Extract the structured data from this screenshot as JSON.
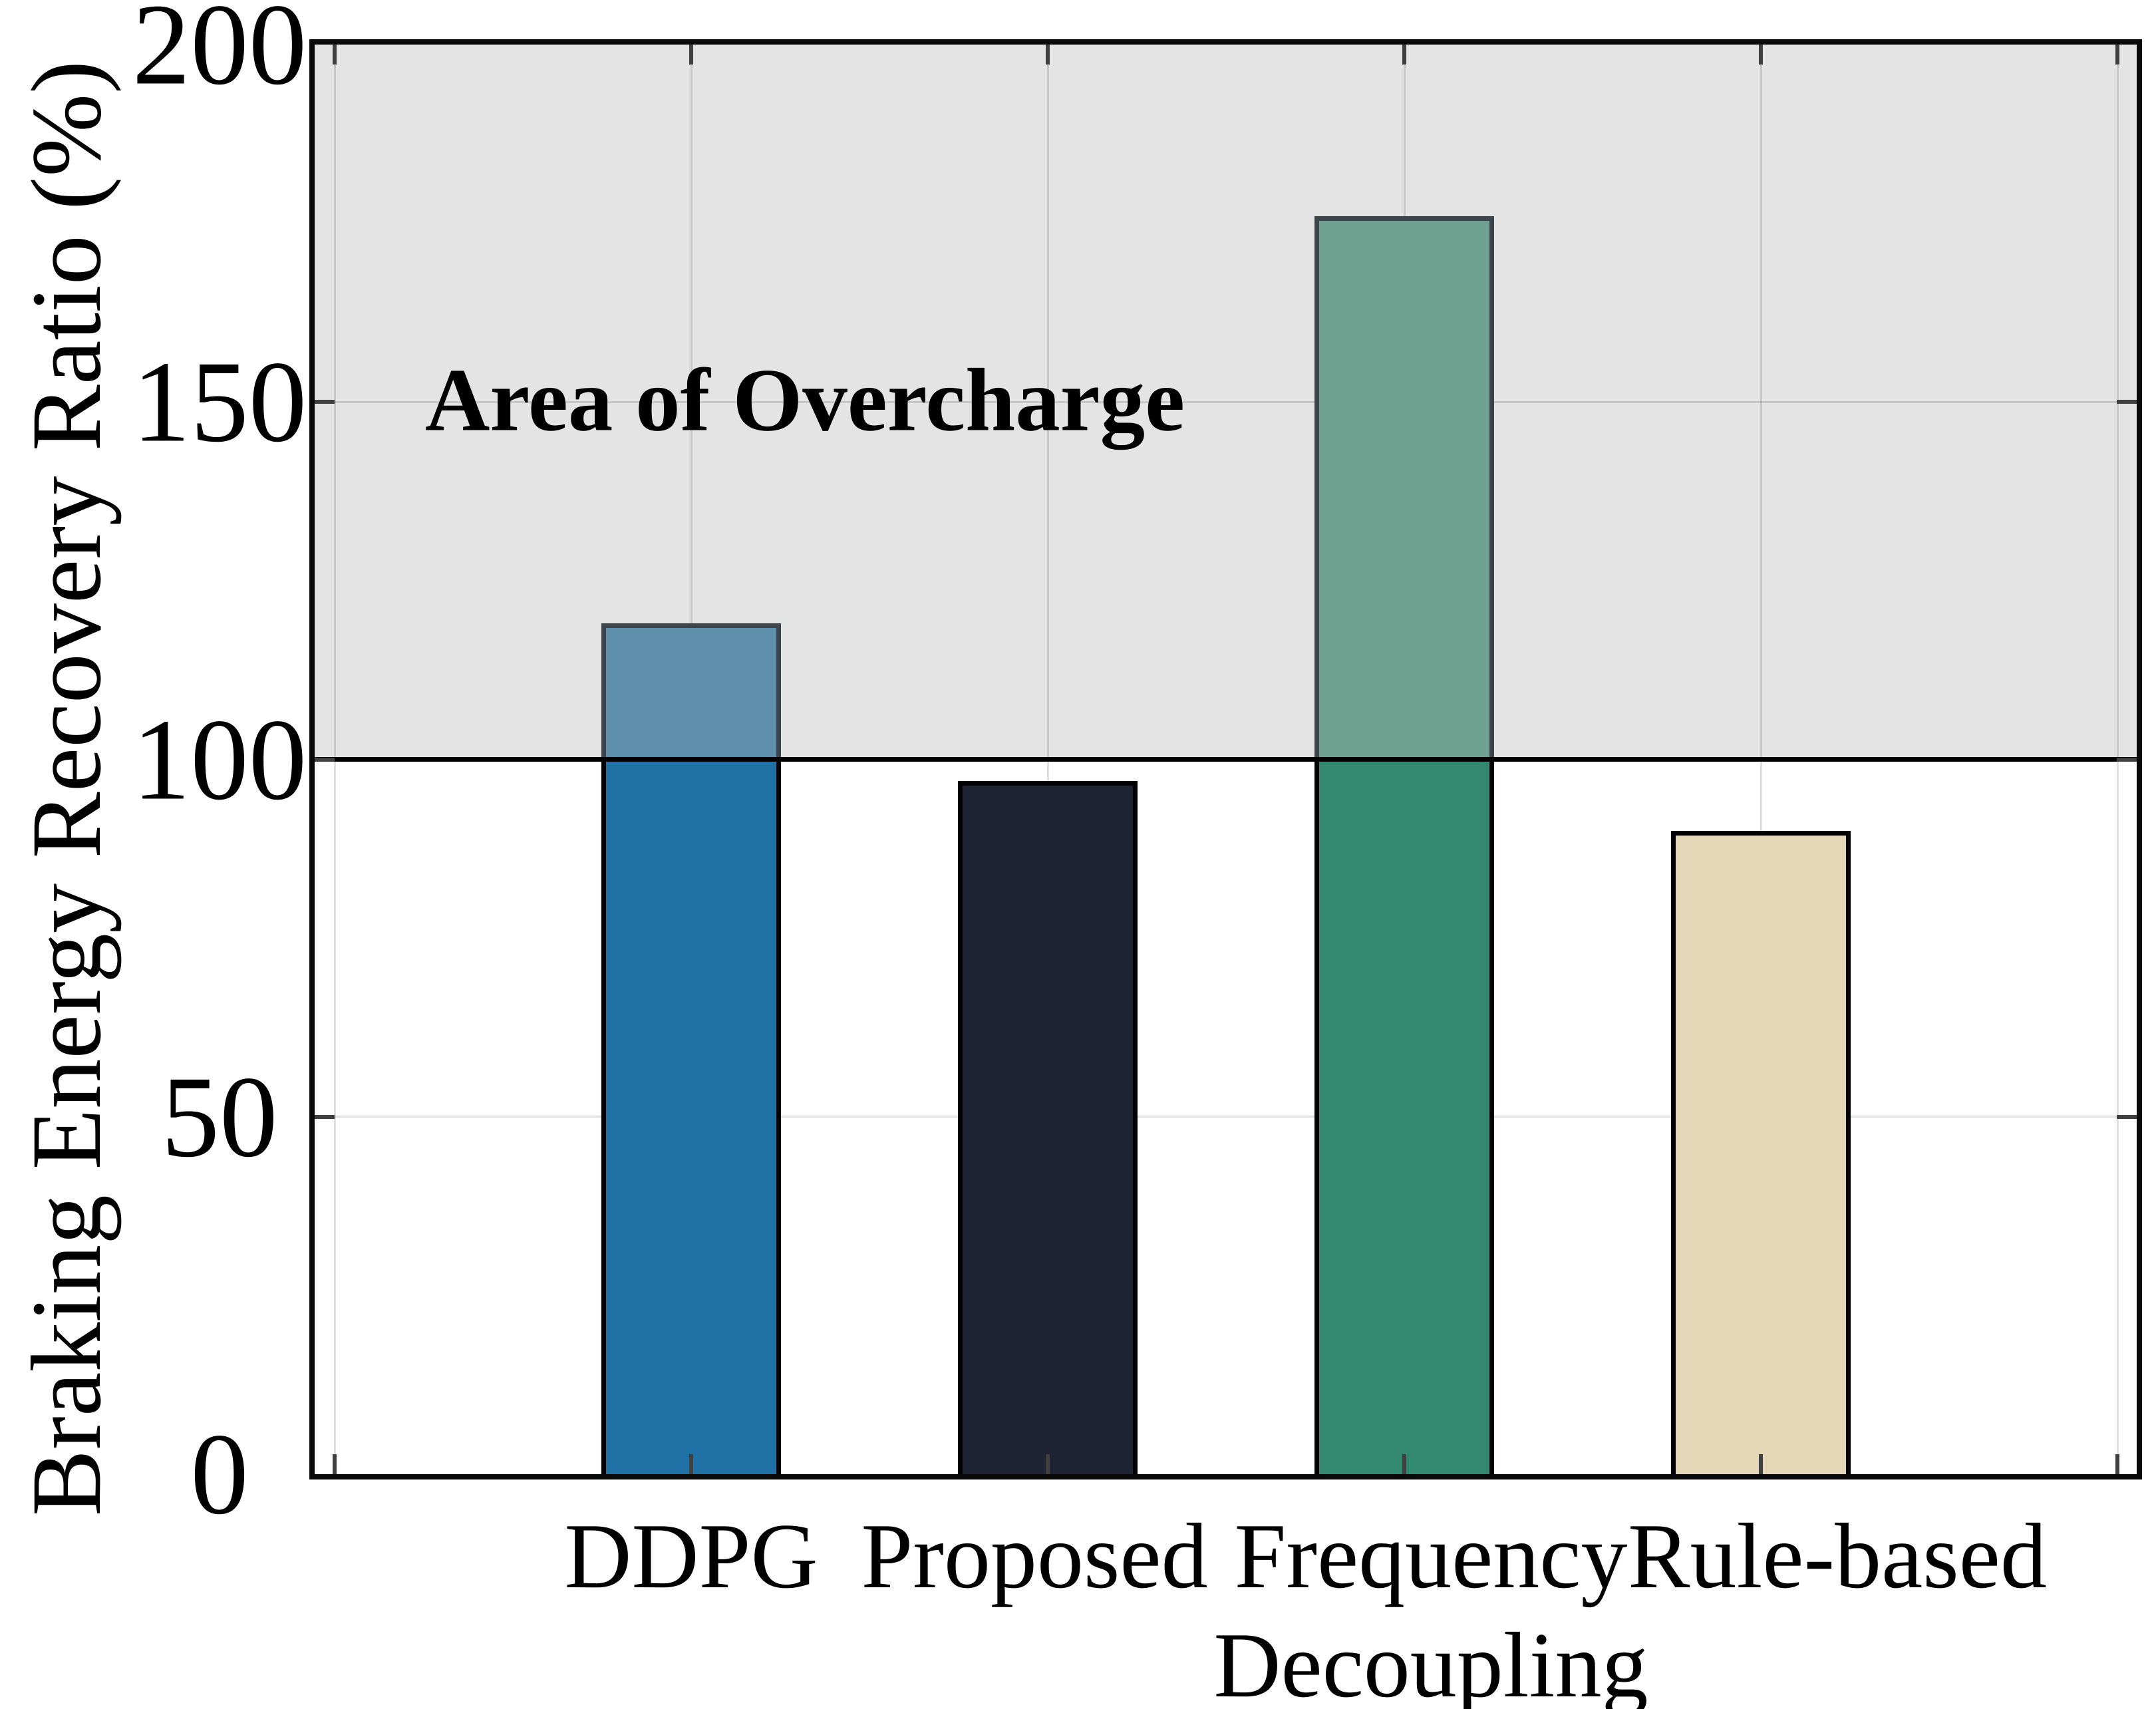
{
  "chart_data": {
    "type": "bar",
    "title": "",
    "xlabel": "",
    "ylabel": "Braking Energy Recovery Ratio (%)",
    "categories": [
      "DDPG",
      "Proposed",
      "Frequency Decoupling",
      "Rule-based"
    ],
    "category_lines": [
      [
        "DDPG"
      ],
      [
        "Proposed"
      ],
      [
        "Frequency",
        "Decoupling"
      ],
      [
        "Rule-based"
      ]
    ],
    "values": [
      119,
      97,
      176,
      90
    ],
    "ylim": [
      0,
      200
    ],
    "yticks": [
      0,
      50,
      100,
      150,
      200
    ],
    "grid": true,
    "legend": "none",
    "annotation": "Area of Overcharge",
    "shaded_region": [
      100,
      200
    ],
    "overcharge_threshold": 100,
    "colors": {
      "bar_fill": [
        "#2071A6",
        "#1E2433",
        "#33896F",
        "#E4D7B8"
      ],
      "bar_fill_in_shaded_area": [
        "#5E90AC",
        "#1E2433",
        "#6FA191",
        "#E4D7B8"
      ],
      "bar_edge": "#000000",
      "bar_edge_in_shaded_area": "#3E444B",
      "shaded_band": "#E4E4E5",
      "threshold_line": "#000000",
      "frame": "#0A0A0A"
    }
  }
}
